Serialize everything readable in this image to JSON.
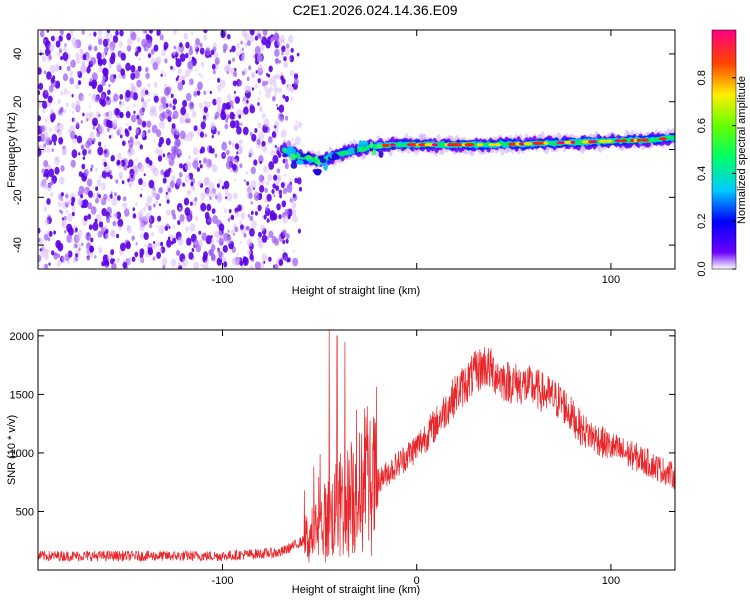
{
  "title": "C2E1.2026.024.14.36.E09",
  "chart_data": [
    {
      "type": "heatmap",
      "xlabel": "Height of straight line (km)",
      "ylabel": "Frequency (Hz)",
      "xlim": [
        -195,
        133
      ],
      "ylim": [
        -50,
        50
      ],
      "xticks": [
        -100,
        0,
        100
      ],
      "xtick_labels": [
        "-100",
        "",
        "100"
      ],
      "yticks": [
        -40,
        -20,
        0,
        20,
        40
      ],
      "ytick_labels": [
        "-40",
        "-20",
        "0",
        "20",
        "40"
      ],
      "colorbar": {
        "label": "Normalized spectral amplitude",
        "range": [
          0,
          1
        ],
        "ticks": [
          0.0,
          0.2,
          0.4,
          0.6,
          0.8
        ],
        "tick_labels": [
          "0.0",
          "0.2",
          "0.4",
          "0.6",
          "0.8"
        ],
        "colormap": "rainbow"
      },
      "features": {
        "noise_region_x": [
          -195,
          -62
        ],
        "signal_start_x": -68,
        "ridge_points_x": [
          -68,
          -60,
          -50,
          -40,
          -30,
          -20,
          -10,
          0,
          20,
          40,
          60,
          80,
          100,
          120,
          133
        ],
        "ridge_points_freq": [
          0,
          -3,
          -5,
          -2,
          0,
          1.5,
          2,
          2,
          2,
          2,
          2.5,
          3,
          3.5,
          4,
          5
        ]
      }
    },
    {
      "type": "line",
      "xlabel": "Height of straight line (km)",
      "ylabel": "SNR (10 * v/v)",
      "xlim": [
        -195,
        133
      ],
      "ylim": [
        0,
        2050
      ],
      "xticks": [
        -100,
        0,
        100
      ],
      "xtick_labels": [
        "-100",
        "0",
        "100"
      ],
      "yticks": [
        500,
        1000,
        1500,
        2000
      ],
      "ytick_labels": [
        "500",
        "1000",
        "1500",
        "2000"
      ],
      "color": "#e8262a",
      "envelope": {
        "x": [
          -195,
          -150,
          -100,
          -70,
          -55,
          -48,
          -40,
          -30,
          -20,
          -10,
          0,
          10,
          20,
          30,
          35,
          45,
          60,
          75,
          85,
          100,
          115,
          133
        ],
        "y": [
          120,
          120,
          120,
          150,
          280,
          400,
          520,
          650,
          760,
          900,
          1050,
          1250,
          1500,
          1680,
          1750,
          1620,
          1560,
          1430,
          1200,
          1050,
          950,
          800
        ]
      },
      "spikes": [
        {
          "x": -45,
          "y": 2050
        },
        {
          "x": -41,
          "y": 2000
        },
        {
          "x": -37,
          "y": 1950
        },
        {
          "x": -31,
          "y": 1370
        }
      ]
    }
  ]
}
